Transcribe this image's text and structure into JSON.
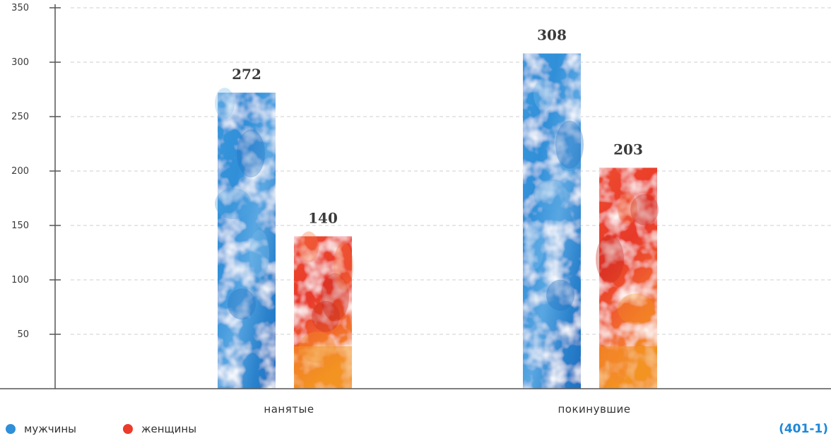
{
  "chart_data": {
    "type": "bar",
    "categories": [
      "нанятые",
      "покинувшие"
    ],
    "series": [
      {
        "name": "мужчины",
        "values": [
          272,
          308
        ]
      },
      {
        "name": "женщины",
        "values": [
          140,
          203
        ]
      }
    ],
    "ylim": [
      0,
      350
    ],
    "yticks": [
      50,
      100,
      150,
      200,
      250,
      300,
      350
    ],
    "grid": true,
    "legend_position": "bottom-left",
    "xlabel": "",
    "ylabel": ""
  },
  "colors": {
    "male": "#2f8fd8",
    "male_light": "#7cbdea",
    "male_dark": "#1f6fbf",
    "female": "#ec3b2a",
    "female_light": "#f5763f",
    "female_dark": "#c8281c",
    "female_orange": "#f39322",
    "axis": "#555555",
    "grid": "#cfcfcf"
  },
  "legend": {
    "male_label": "мужчины",
    "female_label": "женщины"
  },
  "figure_code": "(401-1)"
}
